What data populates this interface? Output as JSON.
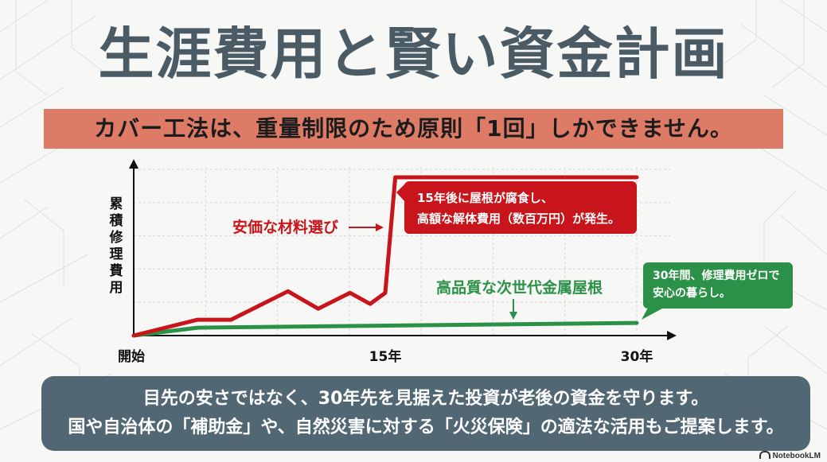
{
  "title": "生涯費用と賢い資金計画",
  "banner": "カバー工法は、重量制限のため原則「1回」しかできません。",
  "footer": {
    "line1": "目先の安さではなく、30年先を見据えた投資が老後の資金を守ります。",
    "line2": "国や自治体の「補助金」や、自然災害に対する「火災保険」の適法な活用もご提案します。"
  },
  "brand": "NotebookLM",
  "colors": {
    "title": "#4a5b66",
    "banner": "#dd7b66",
    "red_series": "#c8151b",
    "green_series": "#2c9148",
    "footer_bg": "#526774"
  },
  "chart_data": {
    "type": "line",
    "title": "",
    "xlabel": "",
    "ylabel": "累積修理費用",
    "xlim": [
      0,
      30
    ],
    "ylim": [
      0,
      100
    ],
    "x_ticks": [
      {
        "x": 0,
        "label": "開始"
      },
      {
        "x": 15,
        "label": "15年"
      },
      {
        "x": 30,
        "label": "30年"
      }
    ],
    "grid": true,
    "series": [
      {
        "name": "安価な材料選び",
        "color": "#c8151b",
        "points": [
          [
            0,
            0
          ],
          [
            3.8,
            10
          ],
          [
            5.8,
            10
          ],
          [
            9.2,
            28
          ],
          [
            11.0,
            17
          ],
          [
            12.9,
            27
          ],
          [
            14.1,
            20
          ],
          [
            15.0,
            27
          ],
          [
            15.6,
            100
          ],
          [
            30,
            100
          ]
        ]
      },
      {
        "name": "高品質な次世代金属屋根",
        "color": "#2c9148",
        "points": [
          [
            0,
            0
          ],
          [
            3.8,
            5
          ],
          [
            30,
            8
          ]
        ]
      }
    ],
    "annotations": [
      {
        "text": "15年後に屋根が腐食し、\n高額な解体費用（数百万円）が発生。",
        "series": 0
      },
      {
        "text": "30年間、修理費用ゼロで\n安心の暮らし。",
        "series": 1
      }
    ]
  }
}
